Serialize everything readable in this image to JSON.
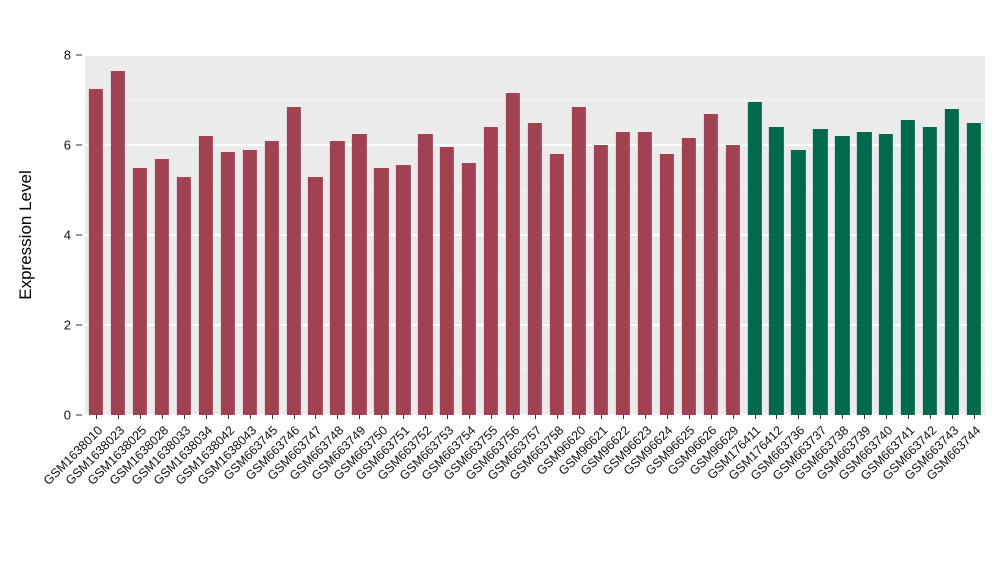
{
  "chart_data": {
    "type": "bar",
    "title": "",
    "xlabel": "",
    "ylabel": "Expression Level",
    "ylim": [
      0,
      8
    ],
    "yticks": [
      0,
      2,
      4,
      6,
      8
    ],
    "yminor": [
      1,
      3,
      5,
      7
    ],
    "grid": true,
    "legend": "none",
    "colors": {
      "group1": "#A04252",
      "group2": "#00694E",
      "panel_background": "#EBEBEB",
      "gridline": "#FFFFFF",
      "axis_text": "#111111"
    },
    "bar_width_fraction": 0.65,
    "bars": [
      {
        "label": "GSM1638010",
        "value": 7.25,
        "group": "group1"
      },
      {
        "label": "GSM1638023",
        "value": 7.65,
        "group": "group1"
      },
      {
        "label": "GSM1638025",
        "value": 5.5,
        "group": "group1"
      },
      {
        "label": "GSM1638028",
        "value": 5.7,
        "group": "group1"
      },
      {
        "label": "GSM1638033",
        "value": 5.3,
        "group": "group1"
      },
      {
        "label": "GSM1638034",
        "value": 6.2,
        "group": "group1"
      },
      {
        "label": "GSM1638042",
        "value": 5.85,
        "group": "group1"
      },
      {
        "label": "GSM1638043",
        "value": 5.9,
        "group": "group1"
      },
      {
        "label": "GSM663745",
        "value": 6.1,
        "group": "group1"
      },
      {
        "label": "GSM663746",
        "value": 6.85,
        "group": "group1"
      },
      {
        "label": "GSM663747",
        "value": 5.3,
        "group": "group1"
      },
      {
        "label": "GSM663748",
        "value": 6.1,
        "group": "group1"
      },
      {
        "label": "GSM663749",
        "value": 6.25,
        "group": "group1"
      },
      {
        "label": "GSM663750",
        "value": 5.5,
        "group": "group1"
      },
      {
        "label": "GSM663751",
        "value": 5.55,
        "group": "group1"
      },
      {
        "label": "GSM663752",
        "value": 6.25,
        "group": "group1"
      },
      {
        "label": "GSM663753",
        "value": 5.95,
        "group": "group1"
      },
      {
        "label": "GSM663754",
        "value": 5.6,
        "group": "group1"
      },
      {
        "label": "GSM663755",
        "value": 6.4,
        "group": "group1"
      },
      {
        "label": "GSM663756",
        "value": 7.15,
        "group": "group1"
      },
      {
        "label": "GSM663757",
        "value": 6.5,
        "group": "group1"
      },
      {
        "label": "GSM663758",
        "value": 5.8,
        "group": "group1"
      },
      {
        "label": "GSM96620",
        "value": 6.85,
        "group": "group1"
      },
      {
        "label": "GSM96621",
        "value": 6.0,
        "group": "group1"
      },
      {
        "label": "GSM96622",
        "value": 6.3,
        "group": "group1"
      },
      {
        "label": "GSM96623",
        "value": 6.3,
        "group": "group1"
      },
      {
        "label": "GSM96624",
        "value": 5.8,
        "group": "group1"
      },
      {
        "label": "GSM96625",
        "value": 6.15,
        "group": "group1"
      },
      {
        "label": "GSM96626",
        "value": 6.7,
        "group": "group1"
      },
      {
        "label": "GSM96629",
        "value": 6.0,
        "group": "group1"
      },
      {
        "label": "GSM176411",
        "value": 6.95,
        "group": "group2"
      },
      {
        "label": "GSM176412",
        "value": 6.4,
        "group": "group2"
      },
      {
        "label": "GSM663736",
        "value": 5.9,
        "group": "group2"
      },
      {
        "label": "GSM663737",
        "value": 6.35,
        "group": "group2"
      },
      {
        "label": "GSM663738",
        "value": 6.2,
        "group": "group2"
      },
      {
        "label": "GSM663739",
        "value": 6.3,
        "group": "group2"
      },
      {
        "label": "GSM663740",
        "value": 6.25,
        "group": "group2"
      },
      {
        "label": "GSM663741",
        "value": 6.55,
        "group": "group2"
      },
      {
        "label": "GSM663742",
        "value": 6.4,
        "group": "group2"
      },
      {
        "label": "GSM663743",
        "value": 6.8,
        "group": "group2"
      },
      {
        "label": "GSM663744",
        "value": 6.5,
        "group": "group2"
      }
    ]
  }
}
